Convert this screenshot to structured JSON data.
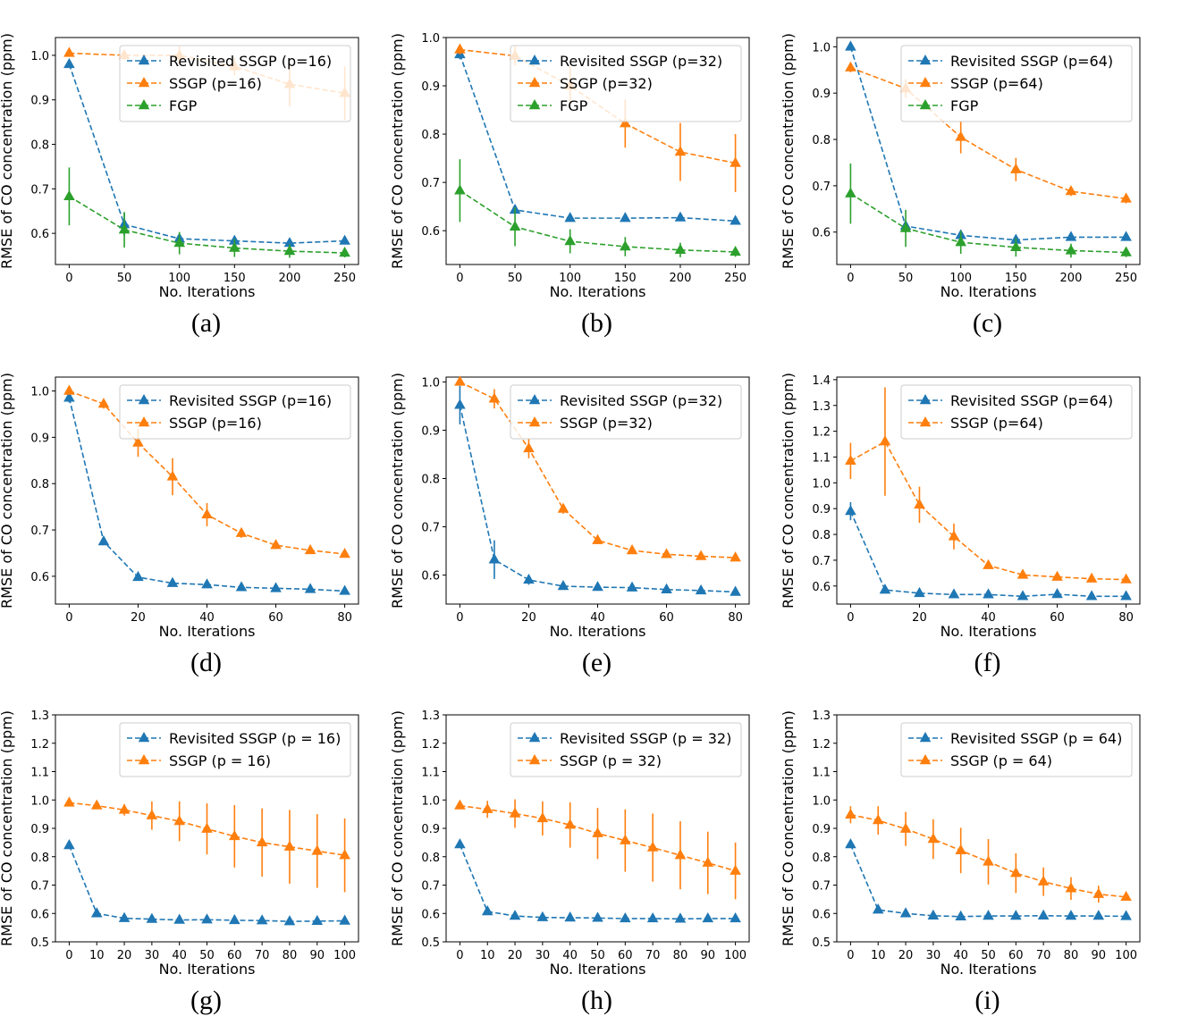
{
  "colors": {
    "revisited": "#1f77b4",
    "ssgp": "#ff7f0e",
    "fgp": "#2ca02c"
  },
  "chart_data": [
    {
      "type": "line",
      "caption": "(a)",
      "xlabel": "No. Iterations",
      "ylabel": "RMSE of CO concentration (ppm)",
      "x": [
        0,
        50,
        100,
        150,
        200,
        250
      ],
      "xticks": [
        0,
        50,
        100,
        150,
        200,
        250
      ],
      "ylim": [
        0.53,
        1.04
      ],
      "yticks": [
        0.6,
        0.7,
        0.8,
        0.9,
        1.0
      ],
      "legend": "top-right",
      "series": [
        {
          "name": "Revisited SSGP (p=16)",
          "color": "#1f77b4",
          "values": [
            0.98,
            0.62,
            0.588,
            0.583,
            0.578,
            0.583
          ],
          "err": [
            0.005,
            0.025,
            0.01,
            0.008,
            0.008,
            0.008
          ]
        },
        {
          "name": "SSGP (p=16)",
          "color": "#ff7f0e",
          "values": [
            1.005,
            1.0,
            1.0,
            0.975,
            0.935,
            0.915
          ],
          "err": [
            0.005,
            0.01,
            0.02,
            0.02,
            0.05,
            0.06
          ]
        },
        {
          "name": "FGP",
          "color": "#2ca02c",
          "values": [
            0.683,
            0.608,
            0.578,
            0.567,
            0.56,
            0.556
          ],
          "err": [
            0.065,
            0.04,
            0.025,
            0.02,
            0.015,
            0.01
          ]
        }
      ]
    },
    {
      "type": "line",
      "caption": "(b)",
      "xlabel": "No. Iterations",
      "ylabel": "RMSE of CO concentration (ppm)",
      "x": [
        0,
        50,
        100,
        150,
        200,
        250
      ],
      "xticks": [
        0,
        50,
        100,
        150,
        200,
        250
      ],
      "ylim": [
        0.53,
        1.0
      ],
      "yticks": [
        0.6,
        0.7,
        0.8,
        0.9,
        1.0
      ],
      "legend": "top-right",
      "series": [
        {
          "name": "Revisited SSGP (p=32)",
          "color": "#1f77b4",
          "values": [
            0.965,
            0.643,
            0.626,
            0.626,
            0.627,
            0.62
          ],
          "err": [
            0.01,
            0.008,
            0.005,
            0.005,
            0.005,
            0.005
          ]
        },
        {
          "name": "SSGP (p=32)",
          "color": "#ff7f0e",
          "values": [
            0.975,
            0.962,
            0.9,
            0.822,
            0.763,
            0.74
          ],
          "err": [
            0.01,
            0.02,
            0.04,
            0.05,
            0.06,
            0.06
          ]
        },
        {
          "name": "FGP",
          "color": "#2ca02c",
          "values": [
            0.683,
            0.608,
            0.578,
            0.567,
            0.56,
            0.556
          ],
          "err": [
            0.065,
            0.04,
            0.025,
            0.02,
            0.015,
            0.01
          ]
        }
      ]
    },
    {
      "type": "line",
      "caption": "(c)",
      "xlabel": "No. Iterations",
      "ylabel": "RMSE of CO concentration (ppm)",
      "x": [
        0,
        50,
        100,
        150,
        200,
        250
      ],
      "xticks": [
        0,
        50,
        100,
        150,
        200,
        250
      ],
      "ylim": [
        0.53,
        1.02
      ],
      "yticks": [
        0.6,
        0.7,
        0.8,
        0.9,
        1.0
      ],
      "legend": "top-right",
      "series": [
        {
          "name": "Revisited SSGP (p=64)",
          "color": "#1f77b4",
          "values": [
            1.0,
            0.613,
            0.593,
            0.583,
            0.589,
            0.589
          ],
          "err": [
            0.005,
            0.01,
            0.008,
            0.005,
            0.005,
            0.005
          ]
        },
        {
          "name": "SSGP (p=64)",
          "color": "#ff7f0e",
          "values": [
            0.955,
            0.91,
            0.805,
            0.735,
            0.688,
            0.672
          ],
          "err": [
            0.01,
            0.02,
            0.035,
            0.025,
            0.01,
            0.01
          ]
        },
        {
          "name": "FGP",
          "color": "#2ca02c",
          "values": [
            0.683,
            0.608,
            0.578,
            0.567,
            0.56,
            0.556
          ],
          "err": [
            0.065,
            0.04,
            0.025,
            0.02,
            0.015,
            0.01
          ]
        }
      ]
    },
    {
      "type": "line",
      "caption": "(d)",
      "xlabel": "No. Iterations",
      "ylabel": "RMSE of CO concentration (ppm)",
      "x": [
        0,
        10,
        20,
        30,
        40,
        50,
        60,
        70,
        80
      ],
      "xticks": [
        0,
        20,
        40,
        60,
        80
      ],
      "ylim": [
        0.54,
        1.03
      ],
      "yticks": [
        0.6,
        0.7,
        0.8,
        0.9,
        1.0
      ],
      "legend": "top-right",
      "series": [
        {
          "name": "Revisited SSGP (p=16)",
          "color": "#1f77b4",
          "values": [
            0.985,
            0.675,
            0.598,
            0.585,
            0.582,
            0.576,
            0.574,
            0.572,
            0.568
          ],
          "err": [
            0.01,
            0.008,
            0.005,
            0.005,
            0.005,
            0.004,
            0.004,
            0.004,
            0.004
          ]
        },
        {
          "name": "SSGP (p=16)",
          "color": "#ff7f0e",
          "values": [
            1.0,
            0.972,
            0.888,
            0.815,
            0.733,
            0.693,
            0.667,
            0.656,
            0.648
          ],
          "err": [
            0.003,
            0.01,
            0.03,
            0.04,
            0.025,
            0.01,
            0.008,
            0.005,
            0.005
          ]
        }
      ]
    },
    {
      "type": "line",
      "caption": "(e)",
      "xlabel": "No. Iterations",
      "ylabel": "RMSE of CO concentration (ppm)",
      "x": [
        0,
        10,
        20,
        30,
        40,
        50,
        60,
        70,
        80
      ],
      "xticks": [
        0,
        20,
        40,
        60,
        80
      ],
      "ylim": [
        0.54,
        1.01
      ],
      "yticks": [
        0.6,
        0.7,
        0.8,
        0.9,
        1.0
      ],
      "legend": "top-right",
      "series": [
        {
          "name": "Revisited SSGP (p=32)",
          "color": "#1f77b4",
          "values": [
            0.952,
            0.632,
            0.59,
            0.577,
            0.575,
            0.574,
            0.57,
            0.568,
            0.565
          ],
          "err": [
            0.04,
            0.04,
            0.01,
            0.005,
            0.004,
            0.004,
            0.004,
            0.004,
            0.004
          ]
        },
        {
          "name": "SSGP (p=32)",
          "color": "#ff7f0e",
          "values": [
            1.0,
            0.965,
            0.862,
            0.737,
            0.672,
            0.651,
            0.643,
            0.639,
            0.636
          ],
          "err": [
            0.003,
            0.02,
            0.02,
            0.01,
            0.008,
            0.005,
            0.005,
            0.005,
            0.005
          ]
        }
      ]
    },
    {
      "type": "line",
      "caption": "(f)",
      "xlabel": "No. Iterations",
      "ylabel": "RMSE of CO concentration (ppm)",
      "x": [
        0,
        10,
        20,
        30,
        40,
        50,
        60,
        70,
        80
      ],
      "xticks": [
        0,
        20,
        40,
        60,
        80
      ],
      "ylim": [
        0.53,
        1.41
      ],
      "yticks": [
        0.6,
        0.7,
        0.8,
        0.9,
        1.0,
        1.1,
        1.2,
        1.3,
        1.4
      ],
      "legend": "top-right",
      "series": [
        {
          "name": "Revisited SSGP (p=64)",
          "color": "#1f77b4",
          "values": [
            0.89,
            0.585,
            0.572,
            0.567,
            0.567,
            0.56,
            0.568,
            0.56,
            0.56
          ],
          "err": [
            0.035,
            0.008,
            0.005,
            0.005,
            0.005,
            0.004,
            0.004,
            0.004,
            0.004
          ]
        },
        {
          "name": "SSGP (p=64)",
          "color": "#ff7f0e",
          "values": [
            1.085,
            1.16,
            0.915,
            0.792,
            0.68,
            0.643,
            0.635,
            0.628,
            0.625
          ],
          "err": [
            0.07,
            0.21,
            0.07,
            0.05,
            0.01,
            0.008,
            0.006,
            0.005,
            0.005
          ]
        }
      ]
    },
    {
      "type": "line",
      "caption": "(g)",
      "xlabel": "No. Iterations",
      "ylabel": "RMSE of CO concentration (ppm)",
      "x": [
        0,
        10,
        20,
        30,
        40,
        50,
        60,
        70,
        80,
        90,
        100
      ],
      "xticks": [
        0,
        10,
        20,
        30,
        40,
        50,
        60,
        70,
        80,
        90,
        100
      ],
      "ylim": [
        0.5,
        1.3
      ],
      "yticks": [
        0.5,
        0.6,
        0.7,
        0.8,
        0.9,
        1.0,
        1.1,
        1.2,
        1.3
      ],
      "legend": "top-right",
      "series": [
        {
          "name": "Revisited SSGP (p = 16)",
          "color": "#1f77b4",
          "values": [
            0.84,
            0.6,
            0.583,
            0.58,
            0.577,
            0.578,
            0.576,
            0.575,
            0.572,
            0.573,
            0.574
          ],
          "err": [
            0.005,
            0.005,
            0.004,
            0.004,
            0.004,
            0.004,
            0.004,
            0.004,
            0.004,
            0.004,
            0.004
          ]
        },
        {
          "name": "SSGP (p = 16)",
          "color": "#ff7f0e",
          "values": [
            0.99,
            0.98,
            0.965,
            0.945,
            0.925,
            0.898,
            0.872,
            0.85,
            0.835,
            0.82,
            0.805
          ],
          "err": [
            0.01,
            0.01,
            0.02,
            0.05,
            0.07,
            0.09,
            0.11,
            0.12,
            0.13,
            0.13,
            0.13
          ]
        }
      ]
    },
    {
      "type": "line",
      "caption": "(h)",
      "xlabel": "No. Iterations",
      "ylabel": "RMSE of CO concentration (ppm)",
      "x": [
        0,
        10,
        20,
        30,
        40,
        50,
        60,
        70,
        80,
        90,
        100
      ],
      "xticks": [
        0,
        10,
        20,
        30,
        40,
        50,
        60,
        70,
        80,
        90,
        100
      ],
      "ylim": [
        0.5,
        1.3
      ],
      "yticks": [
        0.5,
        0.6,
        0.7,
        0.8,
        0.9,
        1.0,
        1.1,
        1.2,
        1.3
      ],
      "legend": "top-right",
      "series": [
        {
          "name": "Revisited SSGP (p = 32)",
          "color": "#1f77b4",
          "values": [
            0.843,
            0.607,
            0.591,
            0.586,
            0.585,
            0.584,
            0.582,
            0.582,
            0.581,
            0.582,
            0.582
          ],
          "err": [
            0.005,
            0.005,
            0.004,
            0.004,
            0.004,
            0.004,
            0.004,
            0.004,
            0.004,
            0.004,
            0.004
          ]
        },
        {
          "name": "SSGP (p = 32)",
          "color": "#ff7f0e",
          "values": [
            0.98,
            0.967,
            0.952,
            0.935,
            0.912,
            0.882,
            0.857,
            0.832,
            0.805,
            0.778,
            0.75
          ],
          "err": [
            0.01,
            0.03,
            0.05,
            0.06,
            0.08,
            0.09,
            0.11,
            0.12,
            0.12,
            0.11,
            0.1
          ]
        }
      ]
    },
    {
      "type": "line",
      "caption": "(i)",
      "xlabel": "No. Iterations",
      "ylabel": "RMSE of CO concentration (ppm)",
      "x": [
        0,
        10,
        20,
        30,
        40,
        50,
        60,
        70,
        80,
        90,
        100
      ],
      "xticks": [
        0,
        10,
        20,
        30,
        40,
        50,
        60,
        70,
        80,
        90,
        100
      ],
      "ylim": [
        0.5,
        1.3
      ],
      "yticks": [
        0.5,
        0.6,
        0.7,
        0.8,
        0.9,
        1.0,
        1.1,
        1.2,
        1.3
      ],
      "legend": "top-right",
      "series": [
        {
          "name": "Revisited SSGP (p = 64)",
          "color": "#1f77b4",
          "values": [
            0.843,
            0.613,
            0.6,
            0.592,
            0.589,
            0.591,
            0.591,
            0.592,
            0.591,
            0.591,
            0.59
          ],
          "err": [
            0.005,
            0.005,
            0.004,
            0.004,
            0.004,
            0.004,
            0.004,
            0.004,
            0.004,
            0.004,
            0.004
          ]
        },
        {
          "name": "SSGP (p = 64)",
          "color": "#ff7f0e",
          "values": [
            0.948,
            0.928,
            0.898,
            0.862,
            0.822,
            0.782,
            0.742,
            0.712,
            0.688,
            0.668,
            0.658
          ],
          "err": [
            0.03,
            0.05,
            0.06,
            0.07,
            0.08,
            0.08,
            0.07,
            0.05,
            0.04,
            0.03,
            0.01
          ]
        }
      ]
    }
  ]
}
